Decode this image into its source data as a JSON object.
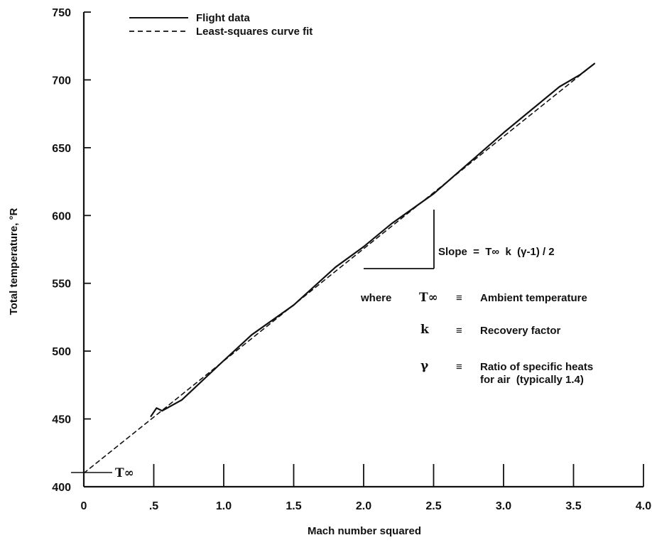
{
  "chart_data": {
    "type": "line",
    "xlabel": "Mach number squared",
    "ylabel": "Total temperature, °R",
    "xlim": [
      0,
      4.0
    ],
    "ylim": [
      400,
      750
    ],
    "x_ticks": [
      0,
      0.5,
      1.0,
      1.5,
      2.0,
      2.5,
      3.0,
      3.5,
      4.0
    ],
    "x_tick_labels": [
      "0",
      ".5",
      "1.0",
      "1.5",
      "2.0",
      "2.5",
      "3.0",
      "3.5",
      "4.0"
    ],
    "y_ticks": [
      400,
      450,
      500,
      550,
      600,
      650,
      700,
      750
    ],
    "y_tick_labels": [
      "400",
      "450",
      "500",
      "550",
      "600",
      "650",
      "700",
      "750"
    ],
    "grid": false,
    "legend_position": "top-left",
    "series": [
      {
        "name": "Flight data",
        "style": "solid",
        "x": [
          0.48,
          0.52,
          0.56,
          0.7,
          1.0,
          1.2,
          1.5,
          1.8,
          2.0,
          2.2,
          2.35,
          2.5,
          2.8,
          3.0,
          3.2,
          3.4,
          3.55,
          3.65
        ],
        "y": [
          452,
          458,
          456,
          464,
          493,
          512,
          534,
          562,
          577,
          594,
          605,
          616,
          643,
          661,
          678,
          695,
          704,
          712
        ]
      },
      {
        "name": "Least-squares curve fit",
        "style": "dashed",
        "x": [
          0,
          3.65
        ],
        "y": [
          410,
          712
        ]
      }
    ],
    "annotations": {
      "t_inf_label": "T∞",
      "slope_label": "Slope  =  T∞  k  (γ-1) / 2",
      "where": "where",
      "equiv": "≡",
      "definitions": [
        {
          "symbol": "T∞",
          "text": "Ambient temperature"
        },
        {
          "symbol": "k",
          "text": "Recovery factor"
        },
        {
          "symbol": "γ",
          "text": "Ratio of specific heats",
          "text2": "for air  (typically 1.4)"
        }
      ]
    }
  }
}
